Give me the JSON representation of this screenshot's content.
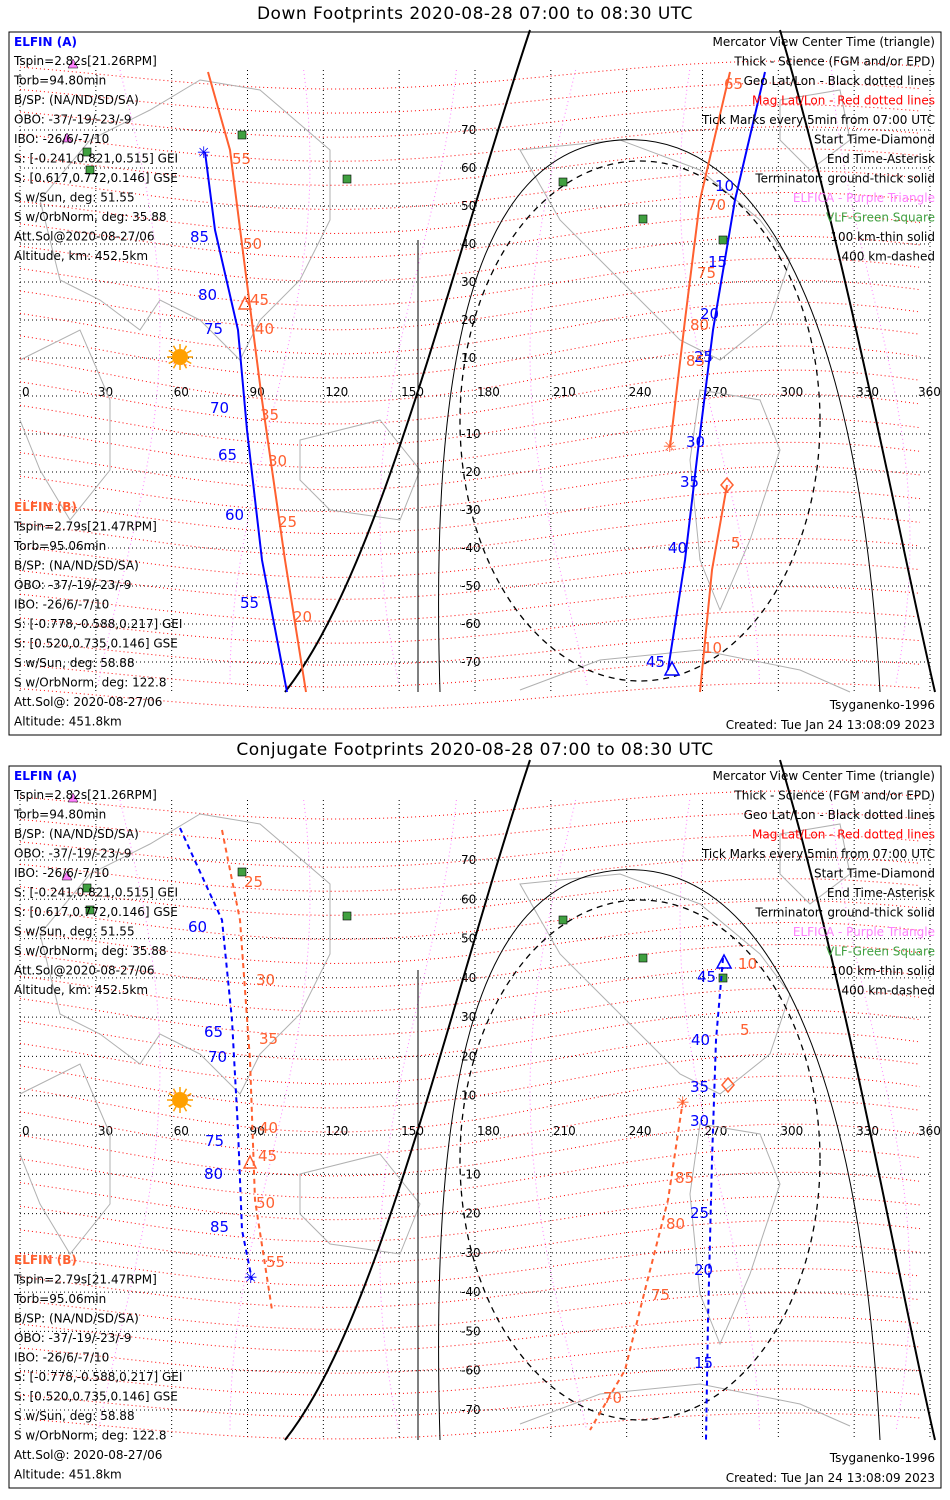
{
  "colors": {
    "elfin_a": "#0000ff",
    "elfin_b": "#ff6030",
    "geo_grid": "#000000",
    "mag_grid": "#ff0000",
    "elfica": "#ff80ff",
    "vlf": "#40a040",
    "coast": "#b0b0b0",
    "sun": "#ffa000"
  },
  "icons": {
    "start": "diamond",
    "end": "asterisk",
    "center": "triangle",
    "elfica": "purple-triangle",
    "vlf": "green-square",
    "sun": "sun-icon"
  },
  "panels": [
    {
      "title": "Down Footprints 2020-08-28 07:00 to 08:30 UTC",
      "legend": [
        "Mercator View Center Time (triangle)",
        "Thick - Science (FGM and/or EPD)",
        "Geo Lat/Lon - Black dotted lines",
        "Mag Lat/Lon - Red dotted lines",
        "Tick Marks every 5min from 07:00 UTC",
        "Start Time-Diamond",
        "End Time-Asterisk",
        "Terminator: ground-thick solid",
        "ELFICA - Purple Triangle",
        "VLF-Green Square",
        "100 km-thin solid",
        "400 km-dashed"
      ],
      "elfin_a": {
        "name": "ELFIN (A)",
        "lines": [
          "Tspin=2.82s[21.26RPM]",
          "Torb=94.80min",
          "B/SP: (NA/ND/SD/SA)",
          "OBO: -37/-19/-23/-9",
          "IBO: -26/6/-7/10",
          "S: [-0.241,0.821,0.515] GEI",
          "S: [0.617,0.772,0.146] GSE",
          "S w/Sun, deg: 51.55",
          "S w/OrbNorm, deg: 35.88",
          "Att.Sol@2020-08-27/06",
          "Altitude, km: 452.5km"
        ]
      },
      "elfin_b": {
        "name": "ELFIN (B)",
        "lines": [
          "Tspin=2.79s[21.47RPM]",
          "Torb=95.06min",
          "B/SP: (NA/ND/SD/SA)",
          "OBO: -37/-19/-23/-9",
          "IBO: -26/6/-7/10",
          "S: [-0.778,-0.588,0.217] GEI",
          "S: [0.520,0.735,0.146] GSE",
          "S w/Sun, deg: 58.88",
          "S w/OrbNorm, deg: 122.8",
          "Att.Sol@: 2020-08-27/06",
          "Altitude: 451.8km"
        ]
      },
      "model": "Tsyganenko-1996",
      "created": "Created: Tue Jan 24 13:08:09 2023",
      "lon_ticks": [
        "0",
        "30",
        "60",
        "90",
        "120",
        "150",
        "180",
        "210",
        "240",
        "270",
        "300",
        "330",
        "360"
      ],
      "lat_ticks": [
        "70",
        "60",
        "50",
        "40",
        "30",
        "20",
        "10",
        "0",
        "-10",
        "-20",
        "-30",
        "-40",
        "-50",
        "-60",
        "-70"
      ],
      "a_labels": [
        "85",
        "80",
        "75",
        "70",
        "65",
        "60",
        "55",
        "10",
        "15",
        "20",
        "25",
        "30",
        "35",
        "40",
        "45"
      ],
      "b_labels": [
        "55",
        "50",
        "45",
        "40",
        "35",
        "30",
        "25",
        "20",
        "65",
        "70",
        "75",
        "80",
        "85",
        "5",
        "10"
      ]
    },
    {
      "title": "Conjugate Footprints 2020-08-28 07:00 to 08:30 UTC",
      "legend": [
        "Mercator View Center Time (triangle)",
        "Thick - Science (FGM and/or EPD)",
        "Geo Lat/Lon - Black dotted lines",
        "Mag Lat/Lon - Red dotted lines",
        "Tick Marks every 5min from 07:00 UTC",
        "Start Time-Diamond",
        "End Time-Asterisk",
        "Terminator: ground-thick solid",
        "ELFICA - Purple Triangle",
        "VLF-Green Square",
        "100 km-thin solid",
        "400 km-dashed"
      ],
      "elfin_a": {
        "name": "ELFIN (A)",
        "lines": [
          "Tspin=2.82s[21.26RPM]",
          "Torb=94.80min",
          "B/SP: (NA/ND/SD/SA)",
          "OBO: -37/-19/-23/-9",
          "IBO: -26/6/-7/10",
          "S: [-0.241,0.821,0.515] GEI",
          "S: [0.617,0.772,0.146] GSE",
          "S w/Sun, deg: 51.55",
          "S w/OrbNorm, deg: 35.88",
          "Att.Sol@2020-08-27/06",
          "Altitude, km: 452.5km"
        ]
      },
      "elfin_b": {
        "name": "ELFIN (B)",
        "lines": [
          "Tspin=2.79s[21.47RPM]",
          "Torb=95.06min",
          "B/SP: (NA/ND/SD/SA)",
          "OBO: -37/-19/-23/-9",
          "IBO: -26/6/-7/10",
          "S: [-0.778,-0.588,0.217] GEI",
          "S: [0.520,0.735,0.146] GSE",
          "S w/Sun, deg: 58.88",
          "S w/OrbNorm, deg: 122.8",
          "Att.Sol@: 2020-08-27/06",
          "Altitude: 451.8km"
        ]
      },
      "model": "Tsyganenko-1996",
      "created": "Created: Tue Jan 24 13:08:09 2023",
      "lon_ticks": [
        "0",
        "30",
        "60",
        "90",
        "120",
        "150",
        "180",
        "210",
        "240",
        "270",
        "300",
        "330",
        "360"
      ],
      "lat_ticks": [
        "70",
        "60",
        "50",
        "40",
        "30",
        "20",
        "10",
        "0",
        "-10",
        "-20",
        "-30",
        "-40",
        "-50",
        "-60",
        "-70"
      ],
      "a_labels": [
        "60",
        "65",
        "70",
        "75",
        "80",
        "85",
        "45",
        "40",
        "35",
        "30",
        "25",
        "20",
        "15"
      ],
      "b_labels": [
        "25",
        "30",
        "35",
        "40",
        "45",
        "50",
        "55",
        "10",
        "5",
        "85",
        "80",
        "75",
        "70"
      ]
    }
  ]
}
